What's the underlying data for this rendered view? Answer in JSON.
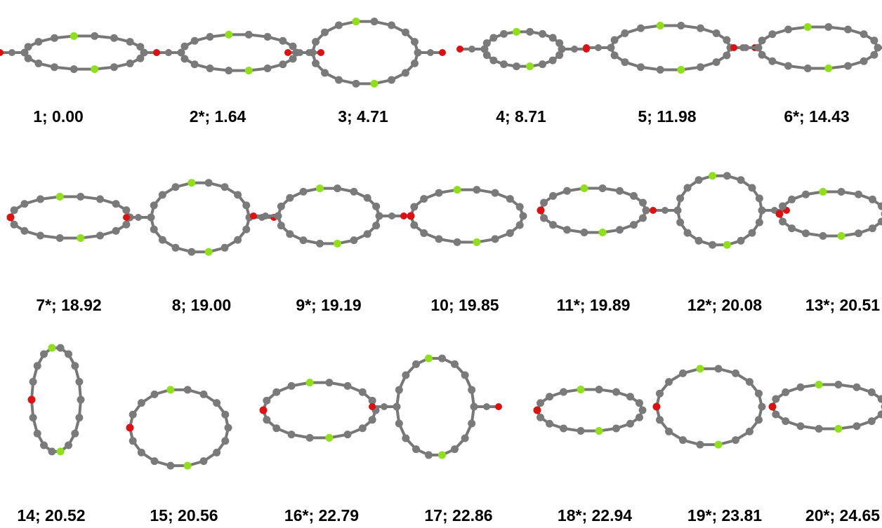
{
  "structures": [
    {
      "label": "1; 0.00"
    },
    {
      "label": "2*; 1.64"
    },
    {
      "label": "3; 4.71"
    },
    {
      "label": "4; 8.71"
    },
    {
      "label": "5; 11.98"
    },
    {
      "label": "6*; 14.43"
    },
    {
      "label": "7*; 18.92"
    },
    {
      "label": "8; 19.00"
    },
    {
      "label": "9*; 19.19"
    },
    {
      "label": "10; 19.85"
    },
    {
      "label": "11*; 19.89"
    },
    {
      "label": "12*; 20.08"
    },
    {
      "label": "13*; 20.51"
    },
    {
      "label": "14; 20.52"
    },
    {
      "label": "15; 20.56"
    },
    {
      "label": "16*; 22.79"
    },
    {
      "label": "17; 22.86"
    },
    {
      "label": "18*; 22.94"
    },
    {
      "label": "19*; 23.81"
    },
    {
      "label": "20*; 24.65"
    }
  ]
}
